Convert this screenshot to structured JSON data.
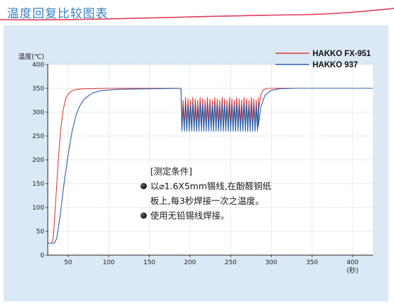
{
  "page_title": "温度回复比较图表",
  "note": {
    "heading": "[测定条件]",
    "item1_line1": "以⌀1.6X5mm锡线,在酚醛铜纸",
    "item1_line2": "板上,每3秒焊接一次之温度。",
    "item2": "使用无铅锡线焊接。"
  },
  "colors": {
    "title": "#3a7fc4",
    "panel": "#dbe8f5",
    "hakko_fx951": "#e03a3a",
    "hakko_937": "#2a5fa8"
  },
  "chart_data": {
    "type": "line",
    "ylabel": "温度(℃)",
    "xlabel": "(秒)",
    "xlim": [
      25,
      425
    ],
    "ylim": [
      0,
      400
    ],
    "x_ticks": [
      50,
      100,
      150,
      200,
      250,
      300,
      350,
      400
    ],
    "y_ticks": [
      0,
      50,
      100,
      150,
      200,
      250,
      300,
      350,
      400
    ],
    "grid": true,
    "legend_position": "top-right",
    "series": [
      {
        "name": "HAKKO FX-951",
        "color": "#e03a3a",
        "points": [
          [
            25,
            25
          ],
          [
            30,
            25
          ],
          [
            32,
            40
          ],
          [
            35,
            120
          ],
          [
            38,
            200
          ],
          [
            41,
            265
          ],
          [
            44,
            305
          ],
          [
            47,
            328
          ],
          [
            50,
            338
          ],
          [
            55,
            345
          ],
          [
            60,
            348
          ],
          [
            70,
            349
          ],
          [
            100,
            350
          ],
          [
            150,
            350
          ],
          [
            189,
            350
          ]
        ],
        "oscillation": {
          "start": 190,
          "end": 284,
          "period": 3,
          "high": 332,
          "low": 275
        },
        "tail": [
          [
            284,
            300
          ],
          [
            287,
            335
          ],
          [
            290,
            347
          ],
          [
            295,
            350
          ],
          [
            320,
            350
          ],
          [
            425,
            350
          ]
        ]
      },
      {
        "name": "HAKKO 937",
        "color": "#2a5fa8",
        "points": [
          [
            25,
            25
          ],
          [
            33,
            25
          ],
          [
            36,
            35
          ],
          [
            40,
            80
          ],
          [
            45,
            150
          ],
          [
            50,
            210
          ],
          [
            55,
            260
          ],
          [
            60,
            295
          ],
          [
            65,
            315
          ],
          [
            70,
            328
          ],
          [
            80,
            340
          ],
          [
            90,
            345
          ],
          [
            110,
            348
          ],
          [
            150,
            349
          ],
          [
            189,
            350
          ]
        ],
        "oscillation": {
          "start": 190,
          "end": 284,
          "period": 3,
          "high": 320,
          "low": 258
        },
        "tail": [
          [
            284,
            270
          ],
          [
            287,
            310
          ],
          [
            292,
            335
          ],
          [
            300,
            346
          ],
          [
            310,
            349
          ],
          [
            330,
            350
          ],
          [
            425,
            350
          ]
        ]
      }
    ]
  }
}
